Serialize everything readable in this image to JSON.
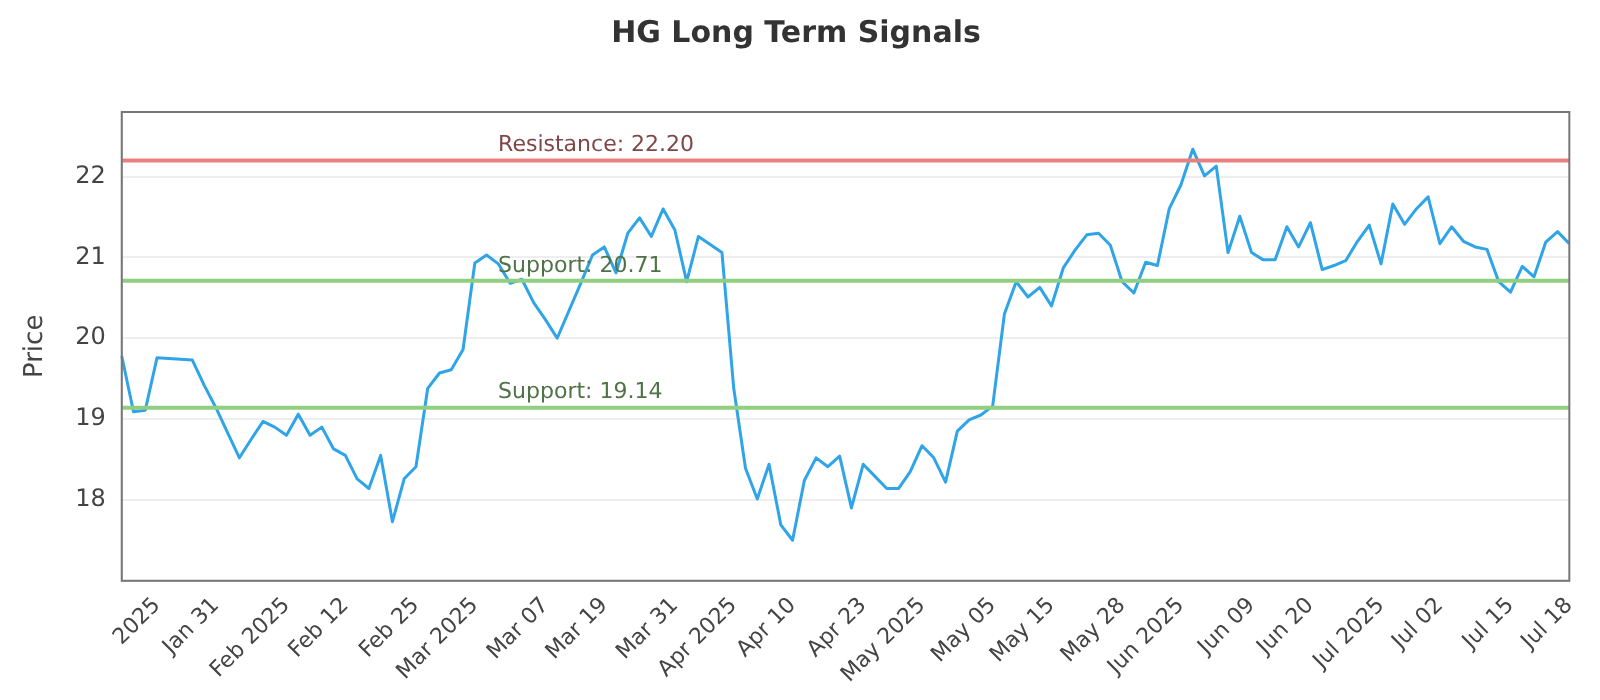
{
  "chart_data": {
    "type": "line",
    "title": "HG Long Term Signals",
    "ylabel": "Price",
    "categories": [
      null,
      null,
      null,
      "2025",
      null,
      null,
      null,
      null,
      "Jan 31",
      null,
      null,
      null,
      null,
      null,
      "Feb 2025",
      null,
      null,
      null,
      null,
      "Feb 12",
      null,
      null,
      null,
      null,
      null,
      "Feb 25",
      null,
      null,
      null,
      null,
      "Mar 2025",
      null,
      null,
      null,
      null,
      null,
      "Mar 07",
      null,
      null,
      null,
      null,
      "Mar 19",
      null,
      null,
      null,
      null,
      null,
      "Mar 31",
      null,
      null,
      null,
      null,
      "Apr 2025",
      null,
      null,
      null,
      null,
      "Apr 10",
      null,
      null,
      null,
      null,
      null,
      "Apr 23",
      null,
      null,
      null,
      null,
      "May 2025",
      null,
      null,
      null,
      null,
      null,
      "May 05",
      null,
      null,
      null,
      null,
      "May 15",
      null,
      null,
      null,
      null,
      null,
      "May 28",
      null,
      null,
      null,
      null,
      "Jun 2025",
      null,
      null,
      null,
      null,
      null,
      "Jun 09",
      null,
      null,
      null,
      null,
      "Jun 20",
      null,
      null,
      null,
      null,
      null,
      "Jul 2025",
      null,
      null,
      null,
      null,
      "Jul 02",
      null,
      null,
      null,
      null,
      null,
      "Jul 15",
      null,
      null,
      null,
      null,
      "Jul 18"
    ],
    "series": [
      {
        "color": "#2fa4e7",
        "values": [
          19.78,
          19.09,
          19.11,
          19.76,
          19.75,
          19.74,
          19.73,
          19.42,
          19.14,
          18.83,
          18.52,
          18.75,
          18.97,
          18.9,
          18.8,
          19.06,
          18.8,
          18.9,
          18.63,
          18.55,
          18.26,
          18.14,
          18.55,
          17.73,
          18.26,
          18.41,
          19.38,
          19.57,
          19.61,
          19.86,
          20.93,
          21.03,
          20.92,
          20.68,
          20.73,
          20.44,
          20.23,
          20.0,
          20.34,
          20.68,
          21.03,
          21.13,
          20.81,
          21.3,
          21.49,
          21.26,
          21.6,
          21.34,
          20.7,
          21.26,
          21.16,
          21.06,
          19.38,
          18.39,
          18.01,
          18.44,
          17.69,
          17.5,
          18.24,
          18.52,
          18.41,
          18.54,
          17.9,
          18.44,
          18.29,
          18.14,
          18.14,
          18.35,
          18.67,
          18.52,
          18.22,
          18.85,
          18.99,
          19.05,
          19.16,
          20.3,
          20.7,
          20.51,
          20.63,
          20.4,
          20.87,
          21.09,
          21.28,
          21.3,
          21.15,
          20.7,
          20.56,
          20.94,
          20.9,
          21.6,
          21.9,
          22.34,
          22.01,
          22.13,
          21.06,
          21.51,
          21.06,
          20.97,
          20.97,
          21.38,
          21.13,
          21.43,
          20.85,
          20.9,
          20.96,
          21.2,
          21.4,
          20.92,
          21.66,
          21.41,
          21.6,
          21.75,
          21.17,
          21.38,
          21.2,
          21.13,
          21.1,
          20.7,
          20.57,
          20.89,
          20.76,
          21.19,
          21.32,
          21.17
        ]
      }
    ],
    "ylim": [
      17,
      22.8
    ],
    "yticks": [
      18,
      19,
      20,
      21,
      22
    ],
    "grid": "y",
    "legend": false,
    "marker": "none",
    "line_style": "solid",
    "ref_lines": [
      {
        "axis": "y",
        "value": 22.2,
        "label": "Resistance: 22.20",
        "color": "#e88080"
      },
      {
        "axis": "y",
        "value": 20.71,
        "label": "Support: 20.71",
        "color": "#8fcf7f"
      },
      {
        "axis": "y",
        "value": 19.14,
        "label": "Support: 19.14",
        "color": "#8fcf7f"
      }
    ]
  }
}
